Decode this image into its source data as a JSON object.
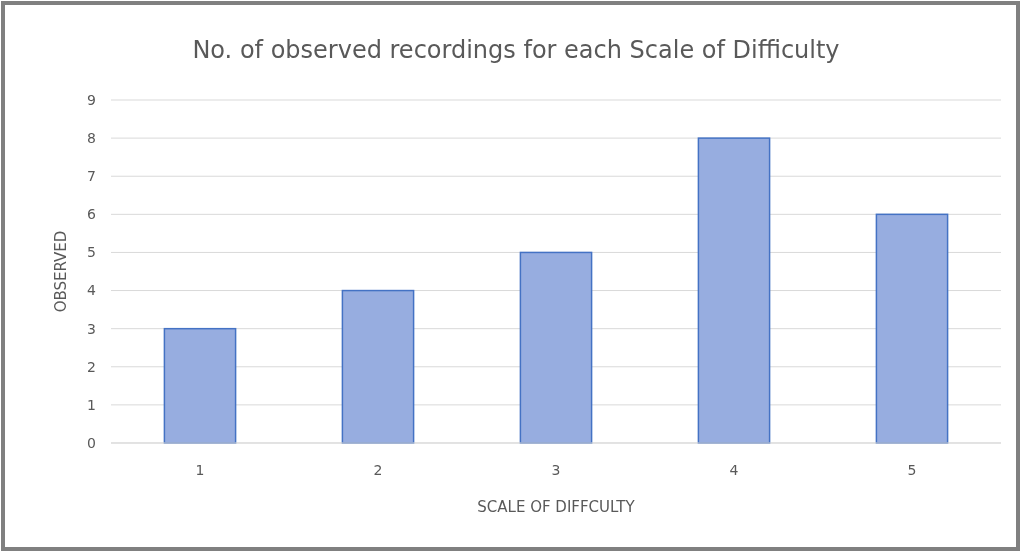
{
  "chart_data": {
    "type": "bar",
    "title": "No. of observed  recordings for each Scale of Difficulty",
    "xlabel": "SCALE OF DIFFCULTY",
    "ylabel": "OBSERVED",
    "categories": [
      "1",
      "2",
      "3",
      "4",
      "5"
    ],
    "values": [
      3,
      4,
      5,
      8,
      6
    ],
    "color": "#97ade0",
    "ylim": [
      0,
      9
    ],
    "yticks": [
      0,
      1,
      2,
      3,
      4,
      5,
      6,
      7,
      8,
      9
    ],
    "grid": "y"
  }
}
